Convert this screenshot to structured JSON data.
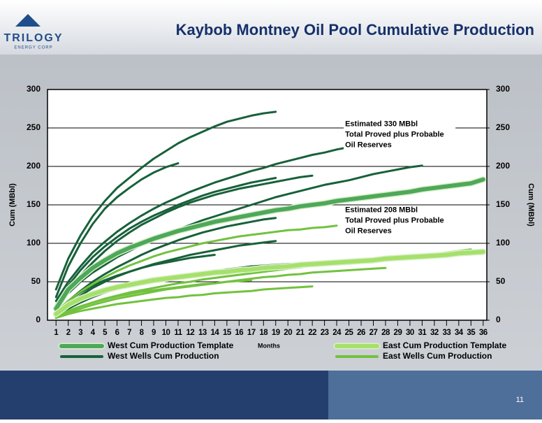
{
  "header": {
    "title": "Kaybob Montney Oil Pool Cumulative Production",
    "logo": "TRILOGY",
    "logo_sub": "ENERGY CORP"
  },
  "page_number": "11",
  "chart_data": {
    "type": "line",
    "x_label": "Months",
    "y_label": "Cum (MBbl)",
    "y2_label": "Cum (MBbl)",
    "x": [
      1,
      2,
      3,
      4,
      5,
      6,
      7,
      8,
      9,
      10,
      11,
      12,
      13,
      14,
      15,
      16,
      17,
      18,
      19,
      20,
      21,
      22,
      23,
      24,
      25,
      26,
      27,
      28,
      29,
      30,
      31,
      32,
      33,
      34,
      35,
      36
    ],
    "xlim": [
      0.3,
      36.3
    ],
    "xticks": [
      1,
      2,
      3,
      4,
      5,
      6,
      7,
      8,
      9,
      10,
      11,
      12,
      13,
      14,
      15,
      16,
      17,
      18,
      19,
      20,
      21,
      22,
      23,
      24,
      25,
      26,
      27,
      28,
      29,
      30,
      31,
      32,
      33,
      34,
      35,
      36
    ],
    "ylim": [
      0,
      300
    ],
    "yticks": [
      0,
      50,
      100,
      150,
      200,
      250,
      300
    ],
    "y2lim": [
      0,
      300
    ],
    "y2ticks": [
      0,
      50,
      100,
      150,
      200,
      250,
      300
    ],
    "grid": true,
    "annotations": [
      {
        "x": 24,
        "y": 255,
        "lines": [
          "Estimated 330 MBbl",
          "Total Proved plus Probable",
          "Oil Reserves"
        ]
      },
      {
        "x": 24,
        "y": 143,
        "lines": [
          "Estimated 208 MBbl",
          "Total Proved plus Probable",
          "Oil Reserves"
        ]
      }
    ],
    "series": [
      {
        "name": "West Cum Production Template",
        "color": "#4fa85a",
        "template": true,
        "values": [
          15,
          40,
          55,
          68,
          78,
          87,
          94,
          100,
          106,
          111,
          116,
          120,
          124,
          128,
          131,
          134,
          137,
          140,
          143,
          145,
          148,
          150,
          152,
          155,
          157,
          159,
          161,
          163,
          165,
          167,
          170,
          172,
          174,
          176,
          178,
          183
        ]
      },
      {
        "name": "West Wells Cum Production",
        "color": "#17613a",
        "lines": [
          [
            40,
            80,
            110,
            135,
            155,
            172,
            185,
            198,
            210,
            220,
            230,
            238,
            245,
            252,
            258,
            262,
            266,
            269,
            271,
            null,
            null,
            null,
            null,
            null,
            null,
            null,
            null,
            null,
            null,
            null,
            null,
            null,
            null,
            null,
            null,
            null
          ],
          [
            30,
            70,
            100,
            125,
            145,
            160,
            172,
            183,
            192,
            199,
            204,
            null,
            null,
            null,
            null,
            null,
            null,
            null,
            null,
            null,
            null,
            null,
            null,
            null,
            null,
            null,
            null,
            null,
            null,
            null,
            null,
            null,
            null,
            null,
            null,
            null
          ],
          [
            25,
            50,
            70,
            88,
            102,
            115,
            126,
            136,
            145,
            153,
            160,
            167,
            173,
            179,
            184,
            189,
            194,
            198,
            203,
            207,
            211,
            215,
            218,
            222,
            225,
            228,
            null,
            null,
            null,
            null,
            null,
            null,
            null,
            null,
            null,
            null
          ],
          [
            15,
            35,
            50,
            62,
            72,
            82,
            90,
            98,
            105,
            112,
            118,
            124,
            130,
            135,
            140,
            145,
            150,
            155,
            160,
            164,
            168,
            172,
            176,
            179,
            182,
            186,
            190,
            193,
            196,
            199,
            201,
            null,
            null,
            null,
            null,
            null
          ],
          [
            20,
            45,
            65,
            82,
            96,
            108,
            119,
            128,
            136,
            143,
            150,
            156,
            162,
            167,
            171,
            175,
            179,
            182,
            185,
            null,
            null,
            null,
            null,
            null,
            null,
            null,
            null,
            null,
            null,
            null,
            null,
            null,
            null,
            null,
            null,
            null
          ],
          [
            10,
            25,
            38,
            50,
            60,
            69,
            77,
            85,
            92,
            98,
            104,
            109,
            114,
            118,
            122,
            125,
            128,
            131,
            133,
            null,
            null,
            null,
            null,
            null,
            null,
            null,
            null,
            null,
            null,
            null,
            null,
            null,
            null,
            null,
            null,
            null
          ],
          [
            5,
            15,
            23,
            30,
            36,
            41,
            45,
            49,
            52,
            55,
            58,
            60,
            62,
            64,
            66,
            68,
            70,
            71,
            72,
            73,
            74,
            75,
            null,
            null,
            null,
            null,
            null,
            null,
            null,
            null,
            null,
            null,
            null,
            null,
            null,
            null
          ],
          [
            10,
            25,
            36,
            45,
            52,
            58,
            63,
            68,
            72,
            75,
            78,
            81,
            83,
            85,
            null,
            null,
            null,
            null,
            null,
            null,
            null,
            null,
            null,
            null,
            null,
            null,
            null,
            null,
            null,
            null,
            null,
            null,
            null,
            null,
            null,
            null
          ],
          [
            20,
            40,
            58,
            75,
            90,
            103,
            114,
            124,
            132,
            140,
            147,
            153,
            158,
            163,
            167,
            171,
            174,
            177,
            180,
            183,
            186,
            188,
            null,
            null,
            null,
            null,
            null,
            null,
            null,
            null,
            null,
            null,
            null,
            null,
            null,
            null
          ],
          [
            8,
            20,
            32,
            42,
            50,
            57,
            63,
            68,
            73,
            77,
            81,
            85,
            88,
            91,
            94,
            97,
            99,
            101,
            103,
            null,
            null,
            null,
            null,
            null,
            null,
            null,
            null,
            null,
            null,
            null,
            null,
            null,
            null,
            null,
            null,
            null
          ]
        ]
      },
      {
        "name": "East Cum Production Template",
        "color": "#a6e06b",
        "template": true,
        "values": [
          8,
          20,
          28,
          34,
          39,
          43,
          46,
          49,
          52,
          54,
          56,
          58,
          60,
          62,
          63,
          65,
          66,
          68,
          69,
          70,
          72,
          73,
          74,
          75,
          76,
          77,
          78,
          80,
          81,
          82,
          83,
          84,
          85,
          87,
          88,
          89
        ]
      },
      {
        "name": "East Wells Cum Production",
        "color": "#72c23f",
        "lines": [
          [
            5,
            12,
            18,
            23,
            28,
            32,
            36,
            39,
            42,
            45,
            48,
            50,
            53,
            55,
            57,
            59,
            61,
            63,
            65,
            67,
            69,
            71,
            72,
            74,
            75,
            77,
            78,
            80,
            81,
            83,
            84,
            86,
            88,
            90,
            92,
            null
          ],
          [
            10,
            25,
            37,
            47,
            56,
            64,
            71,
            77,
            83,
            88,
            92,
            96,
            100,
            103,
            106,
            109,
            111,
            113,
            115,
            117,
            118,
            120,
            121,
            123,
            null,
            null,
            null,
            null,
            null,
            null,
            null,
            null,
            null,
            null,
            null,
            null
          ],
          [
            4,
            10,
            15,
            20,
            24,
            28,
            31,
            34,
            37,
            40,
            42,
            44,
            46,
            48,
            50,
            52,
            54,
            56,
            57,
            59,
            60,
            62,
            63,
            64,
            65,
            66,
            67,
            68,
            null,
            null,
            null,
            null,
            null,
            null,
            null,
            null
          ],
          [
            3,
            8,
            12,
            15,
            18,
            21,
            23,
            25,
            27,
            29,
            30,
            32,
            33,
            35,
            36,
            37,
            38,
            40,
            41,
            42,
            43,
            44,
            null,
            null,
            null,
            null,
            null,
            null,
            null,
            null,
            null,
            null,
            null,
            null,
            null,
            null
          ],
          [
            5,
            12,
            18,
            23,
            27,
            31,
            34,
            37,
            39,
            41,
            43,
            45,
            47,
            48,
            50,
            51,
            52,
            null,
            null,
            null,
            null,
            null,
            null,
            null,
            null,
            null,
            null,
            null,
            null,
            null,
            null,
            null,
            null,
            null,
            null,
            null
          ]
        ]
      }
    ]
  }
}
